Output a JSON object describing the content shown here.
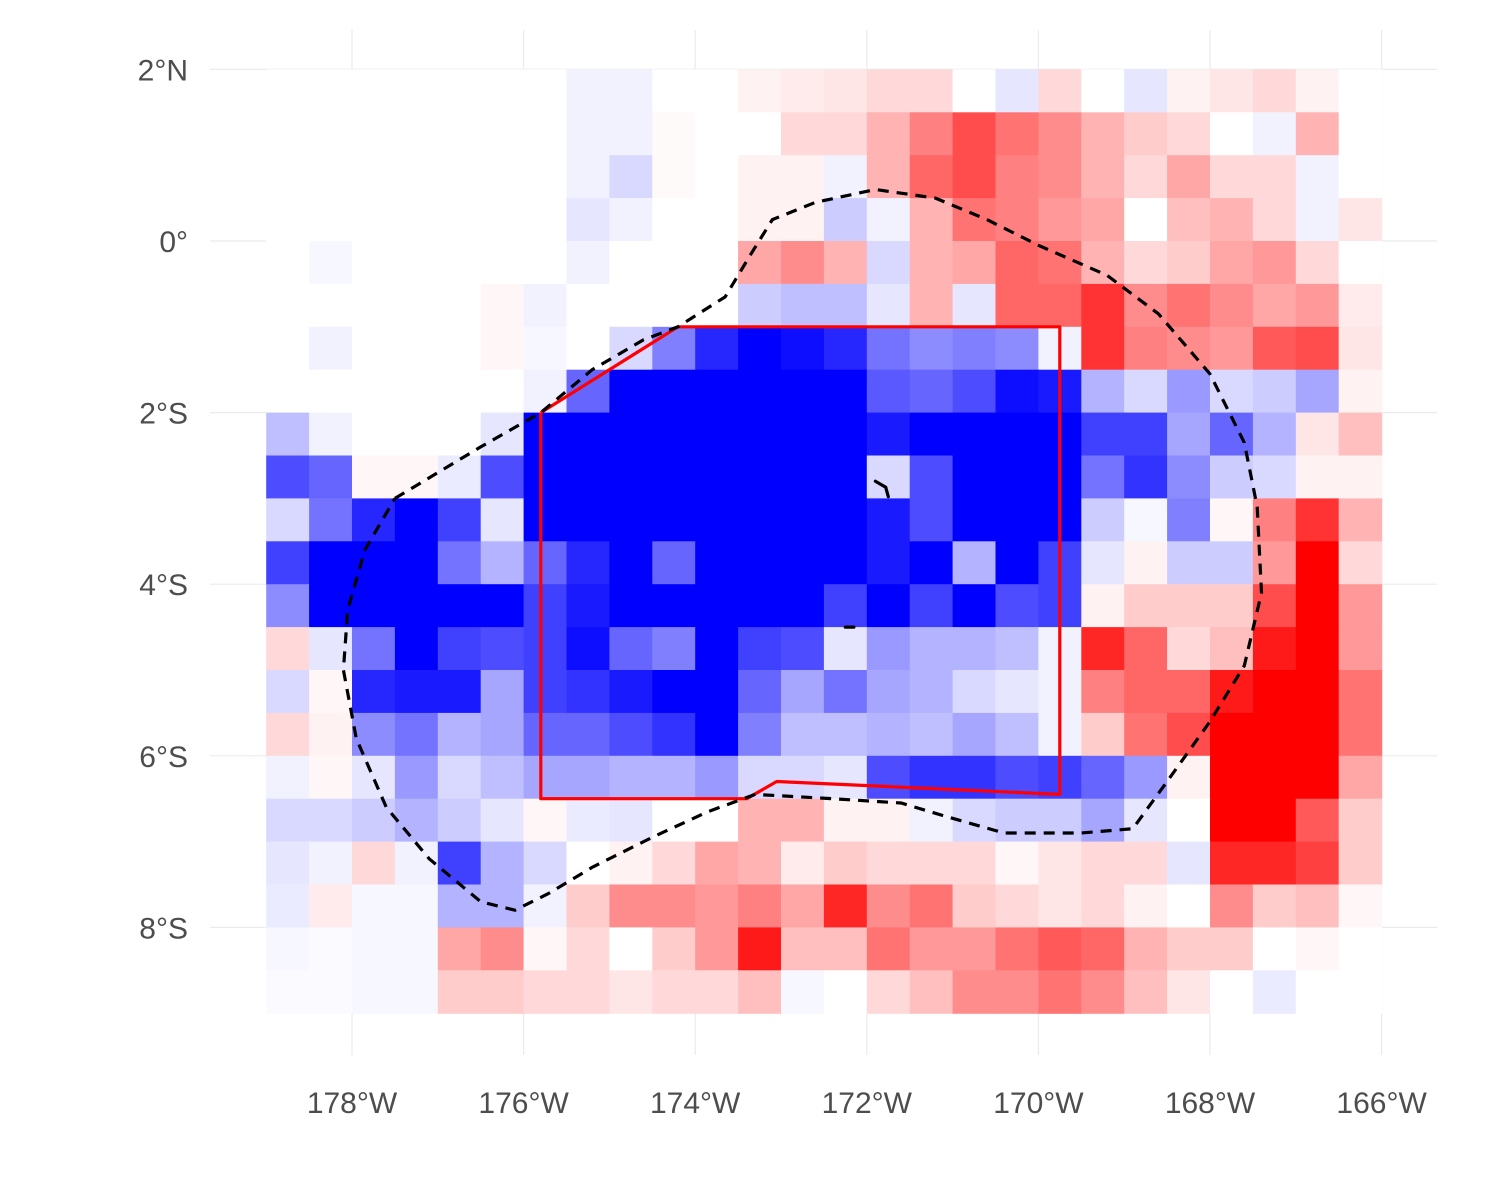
{
  "map": {
    "type": "heatmap",
    "projection": "lon-lat",
    "xlim": [
      -179.0,
      -166.0
    ],
    "ylim": [
      -9.0,
      2.0
    ],
    "cell_size_deg": 0.5,
    "x_ticks": [
      {
        "value": -178,
        "label": "178°W"
      },
      {
        "value": -176,
        "label": "176°W"
      },
      {
        "value": -174,
        "label": "174°W"
      },
      {
        "value": -172,
        "label": "172°W"
      },
      {
        "value": -170,
        "label": "170°W"
      },
      {
        "value": -168,
        "label": "168°W"
      },
      {
        "value": -166,
        "label": "166°W"
      }
    ],
    "y_ticks": [
      {
        "value": 2,
        "label": "2°N"
      },
      {
        "value": 0,
        "label": "0°"
      },
      {
        "value": -2,
        "label": "2°S"
      },
      {
        "value": -4,
        "label": "4°S"
      },
      {
        "value": -6,
        "label": "6°S"
      },
      {
        "value": -8,
        "label": "8°S"
      }
    ],
    "colors": {
      "negative": "#0000ff",
      "neutral": "#ffffff",
      "positive": "#ff0000",
      "box": "#ff0000",
      "contour": "#000000",
      "grid": "#ebebeb",
      "tick_text": "#4d4d4d"
    },
    "value_scale": "diverging, -1 (blue) to +1 (red)",
    "legend": "none",
    "grid": true
  },
  "chart_data": {
    "type": "heatmap",
    "cell_centers_lon": [
      -178.75,
      -178.25,
      -177.75,
      -177.25,
      -176.75,
      -176.25,
      -175.75,
      -175.25,
      -174.75,
      -174.25,
      -173.75,
      -173.25,
      -172.75,
      -172.25,
      -171.75,
      -171.25,
      -170.75,
      -170.25,
      -169.75,
      -169.25,
      -168.75,
      -168.25,
      -167.75,
      -167.25,
      -166.75,
      -166.25
    ],
    "cell_centers_lat": [
      1.75,
      1.25,
      0.75,
      0.25,
      -0.25,
      -0.75,
      -1.25,
      -1.75,
      -2.25,
      -2.75,
      -3.25,
      -3.75,
      -4.25,
      -4.75,
      -5.25,
      -5.75,
      -6.25,
      -6.75,
      -7.25,
      -7.75,
      -8.25,
      -8.75
    ],
    "values": [
      [
        0,
        0,
        0,
        0,
        0,
        0,
        0,
        -0.05,
        -0.05,
        0,
        0,
        0.05,
        0.08,
        0.1,
        0.15,
        0.15,
        0,
        -0.1,
        0.15,
        0,
        -0.1,
        0.05,
        0.1,
        0.15,
        0.05,
        0
      ],
      [
        0,
        0,
        0,
        0,
        0,
        0,
        0,
        -0.05,
        -0.05,
        0.02,
        0,
        0,
        0.15,
        0.15,
        0.3,
        0.5,
        0.7,
        0.55,
        0.45,
        0.3,
        0.2,
        0.15,
        0,
        -0.05,
        0.3,
        0
      ],
      [
        0,
        0,
        0,
        0,
        0,
        0,
        0,
        -0.05,
        -0.15,
        0.02,
        0,
        0.05,
        0.05,
        -0.05,
        0.3,
        0.6,
        0.7,
        0.5,
        0.45,
        0.3,
        0.15,
        0.35,
        0.15,
        0.15,
        -0.05,
        0
      ],
      [
        0,
        0,
        0,
        0,
        0,
        0,
        0,
        -0.1,
        -0.05,
        0,
        0,
        0.05,
        0.05,
        -0.2,
        -0.05,
        0.3,
        0.55,
        0.5,
        0.4,
        0.35,
        0,
        0.25,
        0.3,
        0.15,
        -0.05,
        0.1
      ],
      [
        0,
        -0.03,
        0,
        0,
        0,
        0,
        0,
        -0.05,
        0,
        0,
        0,
        0.35,
        0.45,
        0.3,
        -0.15,
        0.3,
        0.35,
        0.6,
        0.55,
        0.3,
        0.15,
        0.2,
        0.35,
        0.4,
        0.15,
        0
      ],
      [
        0,
        0,
        0,
        0,
        0,
        0.03,
        -0.05,
        0,
        0,
        0,
        0,
        -0.2,
        -0.25,
        -0.25,
        -0.1,
        0.3,
        -0.1,
        0.6,
        0.6,
        0.8,
        0.45,
        0.55,
        0.45,
        0.35,
        0.4,
        0.08
      ],
      [
        0,
        -0.05,
        0,
        0,
        0,
        0.03,
        -0.03,
        0,
        -0.15,
        -0.5,
        -0.85,
        -1,
        -0.95,
        -0.85,
        -0.55,
        -0.45,
        -0.5,
        -0.45,
        -0.05,
        0.8,
        0.5,
        0.45,
        0.4,
        0.65,
        0.7,
        0.1
      ],
      [
        0,
        0,
        0,
        0,
        0,
        0,
        -0.05,
        -0.6,
        -1,
        -1,
        -1,
        -1,
        -1,
        -1,
        -0.65,
        -0.6,
        -0.7,
        -0.95,
        -0.9,
        -0.3,
        -0.15,
        -0.4,
        -0.15,
        -0.2,
        -0.35,
        0.05
      ],
      [
        -0.25,
        -0.05,
        0,
        0,
        0,
        -0.1,
        -1,
        -1,
        -1,
        -1,
        -1,
        -1,
        -1,
        -1,
        -0.9,
        -1,
        -1,
        -1,
        -1,
        -0.75,
        -0.75,
        -0.35,
        -0.6,
        -0.3,
        0.1,
        0.25
      ],
      [
        -0.7,
        -0.6,
        0.03,
        0.03,
        -0.08,
        -0.7,
        -1,
        -1,
        -1,
        -1,
        -1,
        -1,
        -1,
        -1,
        -0.15,
        -0.7,
        -1,
        -1,
        -1,
        -0.55,
        -0.8,
        -0.45,
        -0.2,
        -0.15,
        0.05,
        0.05
      ],
      [
        -0.15,
        -0.55,
        -0.85,
        -1,
        -0.75,
        -0.1,
        -1,
        -1,
        -1,
        -1,
        -1,
        -1,
        -1,
        -1,
        -0.9,
        -0.7,
        -1,
        -1,
        -1,
        -0.2,
        -0.03,
        -0.5,
        0.03,
        0.5,
        0.8,
        0.3
      ],
      [
        -0.75,
        -1,
        -1,
        -1,
        -0.55,
        -0.3,
        -0.6,
        -0.85,
        -1,
        -0.6,
        -1,
        -1,
        -1,
        -1,
        -0.9,
        -1,
        -0.3,
        -1,
        -0.75,
        -0.1,
        0.05,
        -0.2,
        -0.2,
        0.4,
        1,
        0.15
      ],
      [
        -0.45,
        -1,
        -1,
        -1,
        -1,
        -1,
        -0.75,
        -0.9,
        -1,
        -1,
        -1,
        -1,
        -1,
        -0.75,
        -1,
        -0.75,
        -1,
        -0.7,
        -0.75,
        0.05,
        0.2,
        0.2,
        0.2,
        0.7,
        1,
        0.4
      ],
      [
        0.15,
        -0.1,
        -0.55,
        -1,
        -0.75,
        -0.7,
        -0.75,
        -0.95,
        -0.6,
        -0.5,
        -1,
        -0.75,
        -0.7,
        -0.1,
        -0.4,
        -0.3,
        -0.3,
        -0.25,
        -0.05,
        0.85,
        0.6,
        0.15,
        0.25,
        0.9,
        1,
        0.4
      ],
      [
        -0.15,
        0.03,
        -0.85,
        -0.9,
        -0.9,
        -0.35,
        -0.75,
        -0.8,
        -0.9,
        -1,
        -1,
        -0.6,
        -0.35,
        -0.55,
        -0.35,
        -0.3,
        -0.15,
        -0.1,
        -0.05,
        0.5,
        0.6,
        0.6,
        0.9,
        1,
        1,
        0.55
      ],
      [
        0.15,
        0.05,
        -0.45,
        -0.55,
        -0.3,
        -0.35,
        -0.6,
        -0.6,
        -0.7,
        -0.8,
        -1,
        -0.5,
        -0.25,
        -0.25,
        -0.3,
        -0.25,
        -0.35,
        -0.25,
        -0.05,
        0.2,
        0.55,
        0.7,
        1,
        1,
        1,
        0.55
      ],
      [
        -0.05,
        0.03,
        -0.1,
        -0.4,
        -0.15,
        -0.25,
        -0.35,
        -0.35,
        -0.3,
        -0.3,
        -0.4,
        -0.15,
        -0.15,
        -0.1,
        -0.7,
        -0.8,
        -0.8,
        -0.7,
        -0.75,
        -0.6,
        -0.4,
        0.05,
        1,
        1,
        1,
        0.35
      ],
      [
        -0.15,
        -0.15,
        -0.2,
        -0.3,
        -0.2,
        -0.1,
        0.03,
        -0.08,
        -0.1,
        0,
        0,
        0.3,
        0.3,
        0.05,
        0.05,
        -0.05,
        -0.15,
        -0.2,
        -0.2,
        -0.35,
        -0.1,
        0,
        1,
        1,
        0.65,
        0.2
      ],
      [
        -0.1,
        -0.05,
        0.15,
        -0.05,
        -0.75,
        -0.3,
        -0.15,
        0,
        0.05,
        0.15,
        0.35,
        0.3,
        0.08,
        0.2,
        0.15,
        0.15,
        0.15,
        0.03,
        0.1,
        0.15,
        0.15,
        -0.1,
        0.85,
        0.85,
        0.75,
        0.2
      ],
      [
        -0.08,
        0.08,
        -0.03,
        -0.03,
        -0.3,
        -0.3,
        -0.05,
        0.2,
        0.45,
        0.45,
        0.4,
        0.5,
        0.35,
        0.85,
        0.45,
        0.55,
        0.2,
        0.15,
        0.1,
        0.15,
        0.05,
        0,
        0.45,
        0.2,
        0.25,
        0.03
      ],
      [
        -0.03,
        -0.02,
        -0.03,
        -0.03,
        0.35,
        0.45,
        0.03,
        0.15,
        0,
        0.2,
        0.4,
        0.9,
        0.25,
        0.25,
        0.55,
        0.4,
        0.4,
        0.55,
        0.65,
        0.6,
        0.3,
        0.2,
        0.2,
        0,
        0.03,
        0
      ],
      [
        -0.02,
        -0.02,
        -0.03,
        -0.03,
        0.2,
        0.2,
        0.15,
        0.15,
        0.1,
        0.15,
        0.15,
        0.25,
        -0.03,
        0,
        0.15,
        0.25,
        0.45,
        0.45,
        0.55,
        0.45,
        0.25,
        0.1,
        0,
        -0.08,
        0,
        0
      ]
    ],
    "overlays": {
      "box": {
        "name": "red-box-outline",
        "path": [
          [
            -175.8,
            -2.0
          ],
          [
            -174.2,
            -1.0
          ],
          [
            -169.75,
            -1.0
          ],
          [
            -169.75,
            -6.45
          ],
          [
            -173.05,
            -6.3
          ],
          [
            -173.4,
            -6.5
          ],
          [
            -175.8,
            -6.5
          ],
          [
            -175.8,
            -2.0
          ]
        ]
      },
      "contour": {
        "name": "dashed-contour",
        "path": [
          [
            -177.5,
            -3.0
          ],
          [
            -176.5,
            -2.4
          ],
          [
            -175.8,
            -2.0
          ],
          [
            -175.2,
            -1.5
          ],
          [
            -174.6,
            -1.15
          ],
          [
            -174.2,
            -1.0
          ],
          [
            -173.65,
            -0.65
          ],
          [
            -173.35,
            -0.15
          ],
          [
            -173.1,
            0.25
          ],
          [
            -172.6,
            0.45
          ],
          [
            -171.9,
            0.6
          ],
          [
            -171.2,
            0.5
          ],
          [
            -170.6,
            0.25
          ],
          [
            -170.0,
            -0.05
          ],
          [
            -169.2,
            -0.4
          ],
          [
            -168.6,
            -0.85
          ],
          [
            -168.0,
            -1.55
          ],
          [
            -167.6,
            -2.35
          ],
          [
            -167.45,
            -3.1
          ],
          [
            -167.4,
            -4.1
          ],
          [
            -167.6,
            -4.95
          ],
          [
            -168.0,
            -5.6
          ],
          [
            -168.5,
            -6.3
          ],
          [
            -168.9,
            -6.85
          ],
          [
            -169.5,
            -6.9
          ],
          [
            -170.4,
            -6.9
          ],
          [
            -171.1,
            -6.7
          ],
          [
            -171.6,
            -6.55
          ],
          [
            -172.4,
            -6.5
          ],
          [
            -173.3,
            -6.45
          ],
          [
            -173.85,
            -6.65
          ],
          [
            -174.5,
            -6.95
          ],
          [
            -175.2,
            -7.3
          ],
          [
            -175.7,
            -7.6
          ],
          [
            -176.1,
            -7.8
          ],
          [
            -176.5,
            -7.7
          ],
          [
            -177.1,
            -7.2
          ],
          [
            -177.6,
            -6.6
          ],
          [
            -177.95,
            -5.8
          ],
          [
            -178.1,
            -5.0
          ],
          [
            -178.05,
            -4.3
          ],
          [
            -177.85,
            -3.6
          ],
          [
            -177.5,
            -3.0
          ]
        ],
        "fragments": [
          [
            [
              -171.9,
              -2.8
            ],
            [
              -171.78,
              -2.87
            ],
            [
              -171.75,
              -2.98
            ]
          ],
          [
            [
              -172.25,
              -4.5
            ],
            [
              -172.15,
              -4.5
            ]
          ]
        ]
      }
    },
    "xlabel": "",
    "ylabel": "",
    "title": ""
  }
}
